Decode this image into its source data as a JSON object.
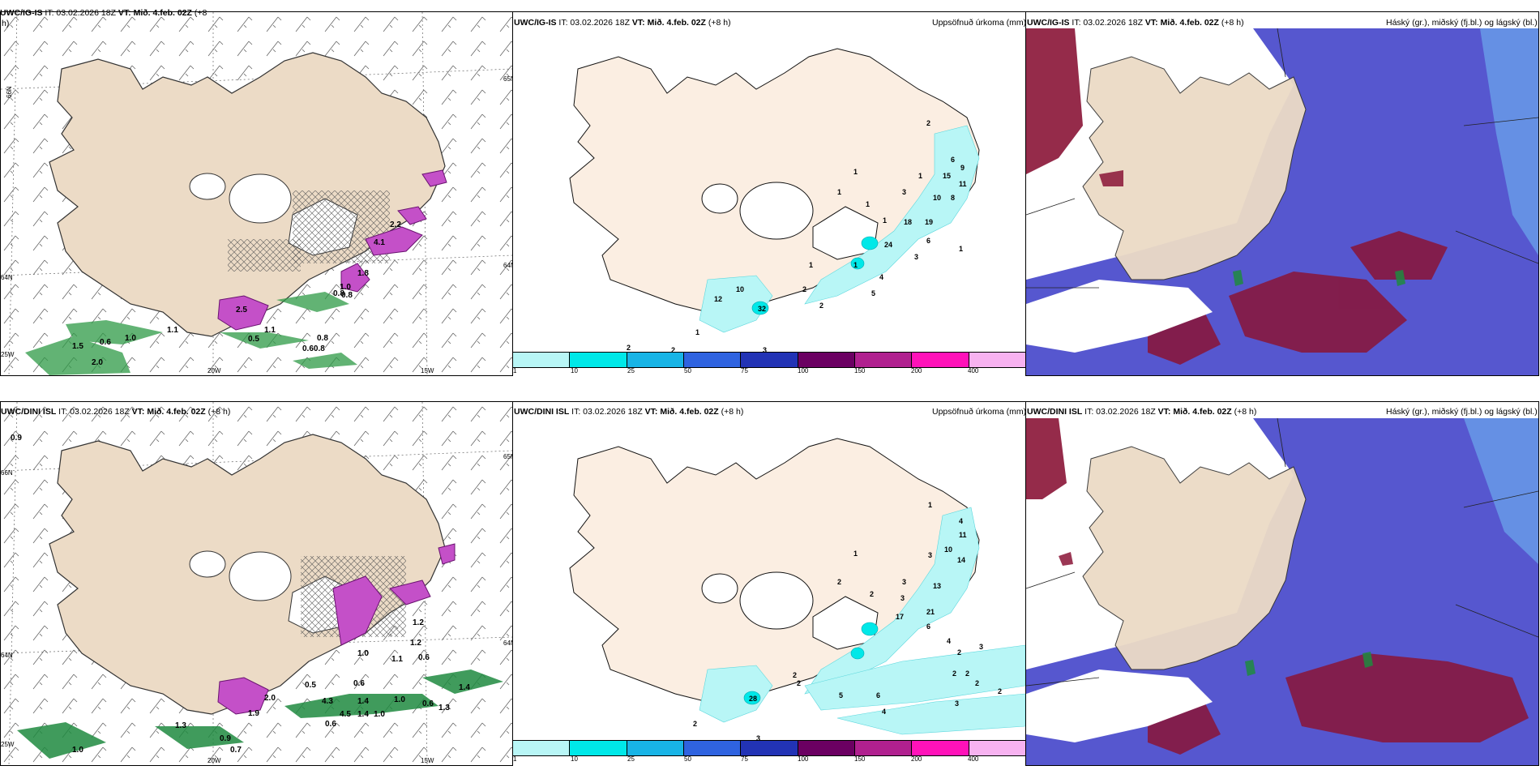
{
  "top_row": {
    "wind_panel": {
      "title_model": "UWC/IG-IS",
      "title_rest": "IT: 03.02.2026 18Z",
      "vt_label": "VT: Mið. 4.feb. 02Z",
      "lead": "(+8",
      "lead2": "h)",
      "axis": {
        "lat66": "66N",
        "lat64a": "64N",
        "lat65": "65N",
        "lat63": "25W",
        "lon20": "20W",
        "lon15": "15W",
        "lat64b": "64N"
      },
      "values": [
        "1.1",
        "0.6",
        "1.0",
        "1.5",
        "2.0",
        "0.5",
        "1.1",
        "0.8",
        "0.60.8",
        "0.8",
        "1.8",
        "0.8",
        "1.0",
        "2.2",
        "4.1",
        "2.5"
      ]
    },
    "precip_panel": {
      "title_model": "UWC/IG-IS",
      "title_rest": "IT: 03.02.2026 18Z",
      "vt_label": "VT: Mið. 4.feb. 02Z",
      "lead": "(+8 h)",
      "right_label": "Uppsöfnuð úrkoma (mm)",
      "values": [
        "2",
        "1",
        "1",
        "1",
        "1",
        "3",
        "15",
        "6",
        "9",
        "11",
        "10",
        "8",
        "19",
        "24",
        "18",
        "6",
        "3",
        "1",
        "1",
        "32",
        "4",
        "5",
        "2",
        "2",
        "10",
        "12",
        "1",
        "2",
        "2",
        "3",
        "1",
        "1"
      ]
    },
    "cloud_panel": {
      "title_model": "UWC/IG-IS",
      "title_rest": "IT: 03.02.2026 18Z",
      "vt_label": "VT: Mið. 4.feb. 02Z",
      "lead": "(+8 h)",
      "right_label": "Háský (gr.), miðský (fj.bl.) og lágský (bl.)"
    }
  },
  "bottom_row": {
    "wind_panel": {
      "title_model": "UWC/DINI ISL",
      "title_rest": "IT: 03.02.2026 18Z",
      "vt_label": "VT: Mið. 4.feb. 02Z",
      "lead": "(+8 h)",
      "axis": {
        "lat66": "66N",
        "lat64a": "64N",
        "lat65": "65N",
        "lat63": "25W",
        "lon20": "20W",
        "lon15": "15W",
        "lat64b": "64N"
      },
      "values": [
        "0.9",
        "1.0",
        "0.6",
        "1.2",
        "1.1",
        "0.6",
        "1.4",
        "0.6",
        "1.3",
        "1.0",
        "1.4",
        "0.6",
        "4.5",
        "4.3",
        "1.4",
        "1.0",
        "1.3",
        "0.9",
        "0.7",
        "1.0",
        "2.0",
        "1.9",
        "0.5",
        "1.2"
      ]
    },
    "precip_panel": {
      "title_model": "UWC/DINI ISL",
      "title_rest": "IT: 03.02.2026 18Z",
      "vt_label": "VT: Mið. 4.feb. 02Z",
      "lead": "(+8 h)",
      "right_label": "Uppsöfnuð úrkoma (mm)",
      "values": [
        "1",
        "4",
        "11",
        "10",
        "14",
        "3",
        "13",
        "1",
        "2",
        "2",
        "3",
        "3",
        "17",
        "21",
        "6",
        "4",
        "3",
        "2",
        "2",
        "2",
        "2",
        "2",
        "3",
        "5",
        "6",
        "4",
        "2",
        "28",
        "2",
        "2",
        "3"
      ]
    },
    "cloud_panel": {
      "title_model": "UWC/DINI ISL",
      "title_rest": "IT: 03.02.2026 18Z",
      "vt_label": "VT: Mið. 4.feb. 02Z",
      "lead": "(+8 h)",
      "right_label": "Háský (gr.), miðský (fj.bl.) og lágský (bl.)"
    }
  },
  "precip_scale": {
    "labels": [
      "1",
      "10",
      "25",
      "50",
      "75",
      "100",
      "150",
      "200",
      "400"
    ],
    "colors": [
      "#b8f6f6",
      "#00e8e8",
      "#18b4e6",
      "#2f63e0",
      "#2233b5",
      "#6b0062",
      "#b0208f",
      "#ff12b9",
      "#f7b2f0"
    ]
  },
  "colors": {
    "land": "#fbeee2",
    "land_wind": "#ecdbc6",
    "high_cloud": "#1f8a40",
    "mid_cloud": "#8a1436",
    "low_cloud": "#3f40c8",
    "low_cloud_light": "#6fb6f2"
  }
}
